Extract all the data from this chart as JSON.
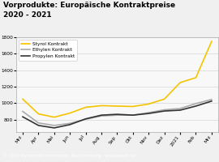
{
  "title_line1": "Vorprodukte: Europäische Kontraktpreise",
  "title_line2": "2020 - 2021",
  "title_bg_color": "#F5C400",
  "footer": "© 2021 Kunststoff Information, Bad Homburg · www.kiweb.de",
  "footer_bg": "#888888",
  "x_labels": [
    "Mrz",
    "Apr",
    "Mai",
    "Jun",
    "Jul",
    "Aug",
    "Sep",
    "Okt",
    "Nov",
    "Dez",
    "2021",
    "Feb",
    "Mrz"
  ],
  "styrol": [
    1050,
    870,
    830,
    880,
    950,
    970,
    965,
    960,
    990,
    1050,
    1250,
    1310,
    1750
  ],
  "ethylen": [
    900,
    760,
    730,
    755,
    805,
    845,
    855,
    855,
    885,
    920,
    935,
    995,
    1045
  ],
  "propylen": [
    835,
    730,
    700,
    740,
    810,
    855,
    865,
    855,
    875,
    905,
    915,
    965,
    1025
  ],
  "styrol_color": "#F5C400",
  "ethylen_color": "#AAAAAA",
  "propylen_color": "#333333",
  "plot_bg": "#F8F8F8",
  "legend_labels": [
    "Styrol Kontrakt",
    "Ethylen Kontrakt",
    "Propylen Kontrakt"
  ],
  "line_width": 1.2,
  "ylim_min": 650,
  "ylim_max": 1800
}
